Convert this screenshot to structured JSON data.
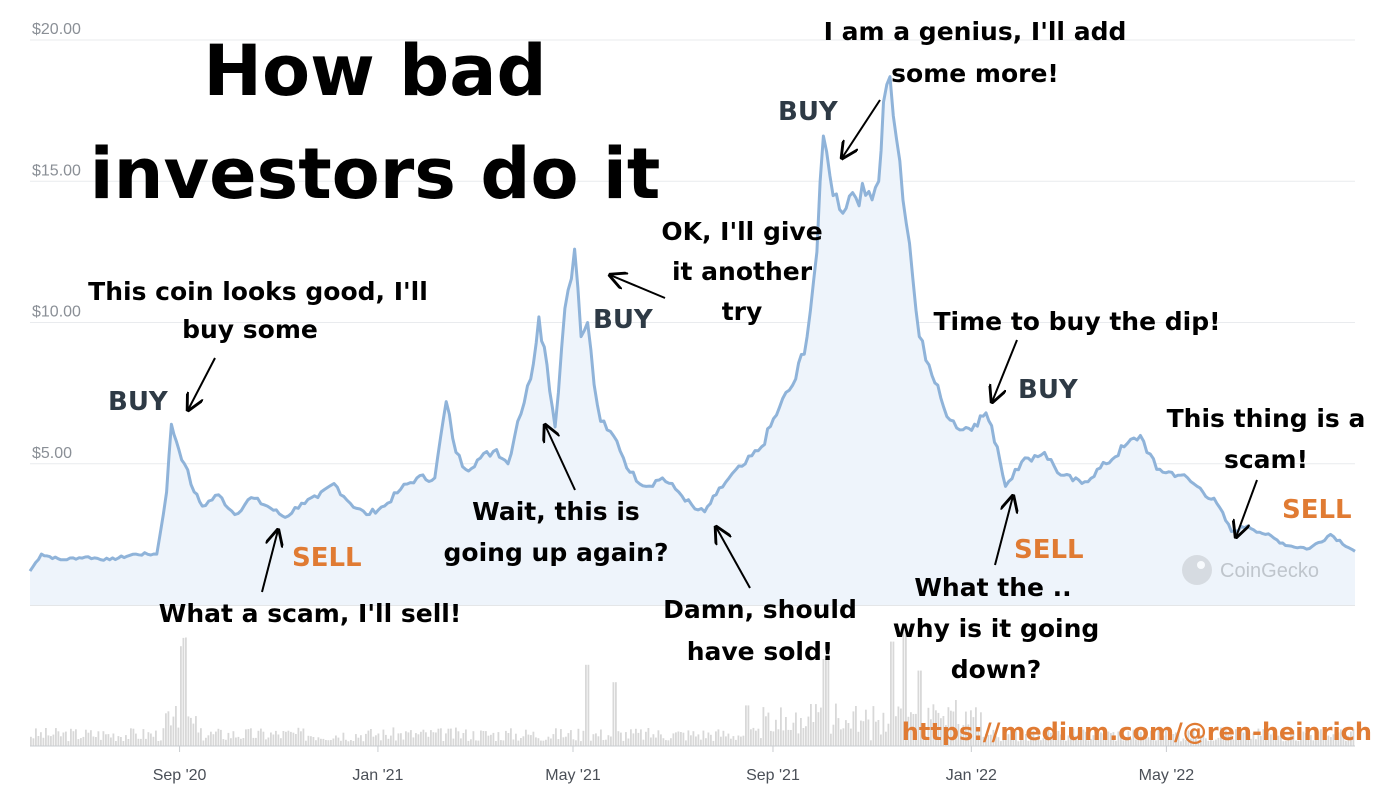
{
  "chart_data": {
    "type": "line",
    "title": "How bad investors do it",
    "title_lines": [
      "How bad",
      "investors do it"
    ],
    "ylim": [
      0,
      20
    ],
    "y_ticks": [
      "$0.00",
      "$5.00",
      "$10.00",
      "$15.00",
      "$20.00"
    ],
    "x_ticks": [
      {
        "label": "Sep '20",
        "date": "2020-09-01"
      },
      {
        "label": "Jan '21",
        "date": "2021-01-01"
      },
      {
        "label": "May '21",
        "date": "2021-05-01"
      },
      {
        "label": "Sep '21",
        "date": "2021-09-01"
      },
      {
        "label": "Jan '22",
        "date": "2022-01-01"
      },
      {
        "label": "May '22",
        "date": "2022-05-01"
      }
    ],
    "x_range": [
      "2020-06-01",
      "2022-08-25"
    ],
    "grid": true,
    "colors": {
      "line": "#8fb3d9",
      "fill": "#eef4fb",
      "volume": "#d8d8d8",
      "buy": "#2e3a45",
      "sell": "#e07b33"
    },
    "series": [
      {
        "x": [
          "2020-06-01",
          "2020-06-08",
          "2020-06-20",
          "2020-07-05",
          "2020-07-20",
          "2020-08-05",
          "2020-08-18",
          "2020-08-24",
          "2020-08-27",
          "2020-08-30",
          "2020-09-04",
          "2020-09-10",
          "2020-09-15",
          "2020-09-25",
          "2020-10-05",
          "2020-10-15",
          "2020-10-25",
          "2020-11-05",
          "2020-11-15",
          "2020-11-25",
          "2020-12-05",
          "2020-12-15",
          "2020-12-25",
          "2021-01-05",
          "2021-01-15",
          "2021-01-25",
          "2021-02-05",
          "2021-02-12",
          "2021-02-18",
          "2021-02-24",
          "2021-03-05",
          "2021-03-15",
          "2021-03-22",
          "2021-03-28",
          "2021-04-05",
          "2021-04-10",
          "2021-04-15",
          "2021-04-20",
          "2021-04-26",
          "2021-05-02",
          "2021-05-06",
          "2021-05-10",
          "2021-05-14",
          "2021-05-18",
          "2021-05-22",
          "2021-05-28",
          "2021-06-05",
          "2021-06-15",
          "2021-06-25",
          "2021-07-05",
          "2021-07-15",
          "2021-07-21",
          "2021-07-28",
          "2021-08-05",
          "2021-08-15",
          "2021-08-25",
          "2021-09-05",
          "2021-09-15",
          "2021-09-22",
          "2021-09-28",
          "2021-10-02",
          "2021-10-06",
          "2021-10-12",
          "2021-10-20",
          "2021-10-28",
          "2021-11-05",
          "2021-11-08",
          "2021-11-12",
          "2021-11-16",
          "2021-11-22",
          "2021-11-30",
          "2021-12-06",
          "2021-12-15",
          "2021-12-25",
          "2022-01-03",
          "2022-01-10",
          "2022-01-17",
          "2022-01-22",
          "2022-01-28",
          "2022-02-05",
          "2022-02-15",
          "2022-02-25",
          "2022-03-10",
          "2022-03-25",
          "2022-04-05",
          "2022-04-15",
          "2022-04-25",
          "2022-05-10",
          "2022-05-20",
          "2022-06-01",
          "2022-06-10",
          "2022-06-20",
          "2022-07-01",
          "2022-07-15",
          "2022-07-28",
          "2022-08-10",
          "2022-08-25"
        ],
        "y": [
          1.2,
          1.8,
          1.6,
          1.7,
          1.6,
          1.8,
          1.8,
          4.0,
          6.4,
          5.8,
          5.0,
          4.0,
          3.5,
          3.9,
          3.2,
          3.8,
          3.5,
          3.1,
          3.6,
          3.8,
          4.3,
          3.6,
          3.2,
          3.5,
          4.1,
          4.5,
          4.5,
          7.2,
          5.4,
          4.8,
          5.2,
          5.5,
          5.0,
          6.5,
          8.0,
          10.2,
          8.5,
          6.3,
          10.5,
          12.6,
          9.5,
          10.0,
          7.8,
          6.5,
          6.2,
          5.8,
          4.7,
          4.2,
          4.5,
          4.0,
          3.4,
          3.3,
          3.9,
          4.5,
          5.0,
          5.6,
          7.0,
          8.0,
          9.5,
          12.5,
          16.6,
          15.2,
          14.0,
          14.6,
          14.5,
          15.0,
          17.8,
          18.7,
          16.5,
          13.5,
          9.5,
          8.5,
          7.0,
          6.2,
          6.4,
          6.8,
          5.6,
          4.2,
          4.8,
          5.2,
          5.4,
          4.6,
          4.3,
          5.0,
          5.6,
          6.0,
          4.8,
          4.6,
          4.2,
          3.6,
          2.6,
          2.8,
          2.5,
          2.1,
          2.0,
          2.5,
          1.9
        ]
      }
    ],
    "volume_spikes": [
      0.85,
      0.7,
      0.55,
      0.35,
      0.75,
      0.9,
      1.0,
      0.65
    ],
    "annotations": {
      "a1": [
        "This coin looks good, I'll",
        "buy some"
      ],
      "a2": [
        "What a scam, I'll sell!"
      ],
      "a3": [
        "Wait, this is",
        "going up again?"
      ],
      "a4": [
        "OK, I'll give",
        "it another",
        "try"
      ],
      "a5": [
        "Damn, should",
        "have sold!"
      ],
      "a6": [
        "I am a genius, I'll add",
        "some more!"
      ],
      "a7": [
        "Time to buy the dip!"
      ],
      "a8": [
        "What the ..",
        "why is it going",
        "down?"
      ],
      "a9": [
        "This thing is a",
        "scam!"
      ]
    },
    "buy_label": "BUY",
    "sell_label": "SELL",
    "source_url": "https://medium.com/@ren-heinrich",
    "watermark": "CoinGecko"
  }
}
